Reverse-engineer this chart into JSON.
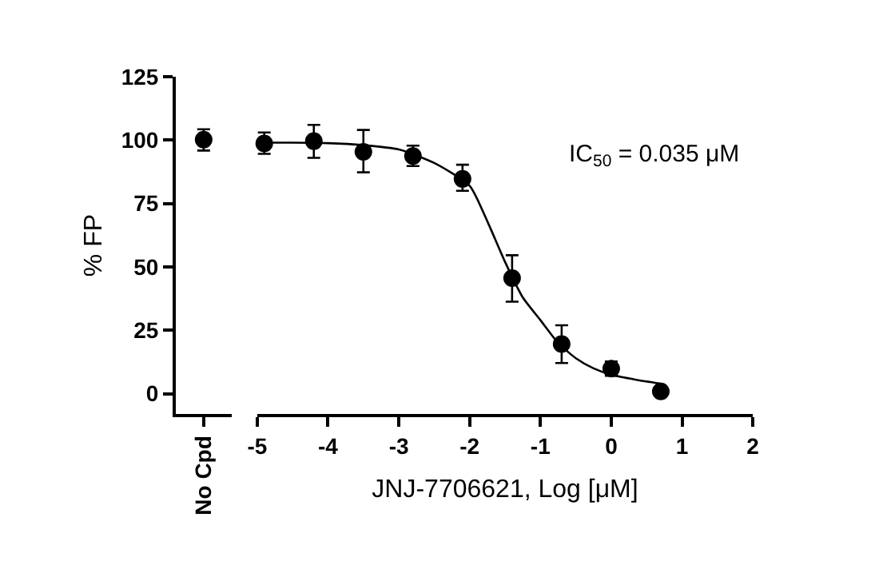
{
  "chart_data": [
    {
      "type": "scatter",
      "categories": [
        "No Cpd"
      ],
      "values": [
        100.2
      ],
      "errors": [
        [
          95.9,
          104.3
        ]
      ],
      "color": "#000000",
      "marker": "circle",
      "ylabel": "% FP",
      "ylim": [
        -8,
        125
      ],
      "yticks": [
        0,
        25,
        50,
        75,
        100,
        125
      ]
    },
    {
      "type": "scatter",
      "xlabel": "JNJ-7706621, Log [μM]",
      "xlim": [
        -5,
        2
      ],
      "xticks": [
        -5,
        -4,
        -3,
        -2,
        -1,
        0,
        1,
        2
      ],
      "ylim": [
        -8,
        125
      ],
      "tick_labels": "x",
      "marker": "circle",
      "annotations": [
        "IC$_{50}$ = 0.035 μM"
      ],
      "series": [
        {
          "type": "scatter",
          "color": "#000000",
          "x": [
            -4.9,
            -4.2,
            -3.5,
            -2.8,
            -2.1,
            -1.4,
            -0.7,
            0,
            0.7
          ],
          "values": [
            98.7,
            99.6,
            95.4,
            93.7,
            84.7,
            45.6,
            19.6,
            9.9,
            0.9
          ],
          "errors": [
            [
              94.6,
              103
            ],
            [
              93,
              106
            ],
            [
              87.3,
              104
            ],
            [
              89.8,
              97.8
            ],
            [
              80,
              90.3
            ],
            [
              36.3,
              54.6
            ],
            [
              12.1,
              27
            ],
            [
              7.1,
              12.7
            ],
            null
          ]
        },
        {
          "type": "line",
          "color": "#000000",
          "marker": "none",
          "line_style": "solid",
          "x": [
            -5,
            -4.5,
            -4,
            -3.5,
            -3,
            -2.5,
            -2,
            -1.75,
            -1.5,
            -1.25,
            -1,
            -0.75,
            -0.5,
            -0.25,
            0,
            0.35,
            0.7
          ],
          "values": [
            99,
            99,
            98.8,
            98,
            96.3,
            91,
            82,
            68,
            52,
            38,
            29,
            20,
            14,
            10,
            7.5,
            5.5,
            4
          ]
        }
      ]
    }
  ]
}
